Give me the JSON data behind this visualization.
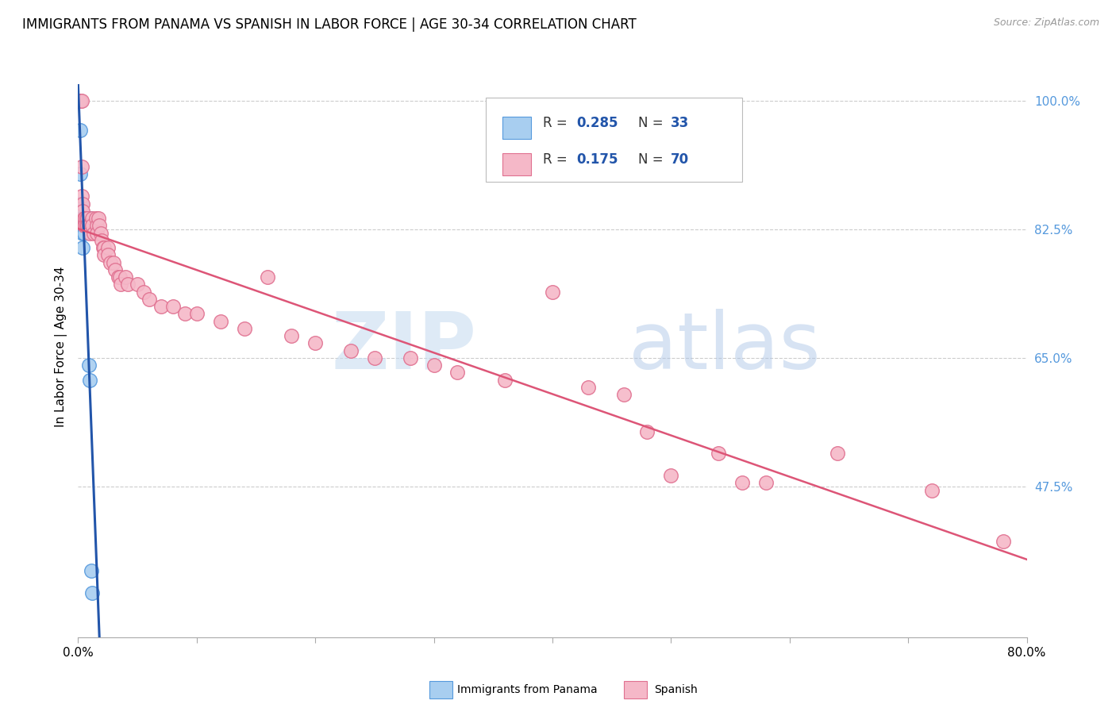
{
  "title": "IMMIGRANTS FROM PANAMA VS SPANISH IN LABOR FORCE | AGE 30-34 CORRELATION CHART",
  "source": "Source: ZipAtlas.com",
  "ylabel": "In Labor Force | Age 30-34",
  "watermark_zip": "ZIP",
  "watermark_atlas": "atlas",
  "legend_blue_r": "R = 0.285",
  "legend_blue_n": "N = 33",
  "legend_pink_r": "R =  0.175",
  "legend_pink_n": "N = 70",
  "right_yticks": [
    1.0,
    0.825,
    0.65,
    0.475
  ],
  "right_ytick_labels": [
    "100.0%",
    "82.5%",
    "65.0%",
    "47.5%"
  ],
  "xmin": 0.0,
  "xmax": 0.8,
  "ymin": 0.27,
  "ymax": 1.06,
  "blue_scatter_x": [
    0.001,
    0.001,
    0.001,
    0.002,
    0.002,
    0.002,
    0.002,
    0.002,
    0.002,
    0.003,
    0.003,
    0.003,
    0.003,
    0.003,
    0.003,
    0.003,
    0.004,
    0.004,
    0.004,
    0.004,
    0.004,
    0.005,
    0.005,
    0.005,
    0.006,
    0.007,
    0.007,
    0.008,
    0.009,
    0.01,
    0.01,
    0.011,
    0.012
  ],
  "blue_scatter_y": [
    1.0,
    1.0,
    1.0,
    1.0,
    1.0,
    1.0,
    0.96,
    0.9,
    0.86,
    0.86,
    0.85,
    0.84,
    0.84,
    0.84,
    0.84,
    0.83,
    0.84,
    0.84,
    0.83,
    0.82,
    0.8,
    0.84,
    0.83,
    0.82,
    0.84,
    0.84,
    0.83,
    0.83,
    0.64,
    0.62,
    0.84,
    0.36,
    0.33
  ],
  "pink_scatter_x": [
    0.001,
    0.002,
    0.003,
    0.003,
    0.003,
    0.004,
    0.004,
    0.005,
    0.005,
    0.006,
    0.006,
    0.007,
    0.007,
    0.008,
    0.008,
    0.009,
    0.01,
    0.01,
    0.012,
    0.012,
    0.013,
    0.015,
    0.016,
    0.016,
    0.017,
    0.018,
    0.019,
    0.02,
    0.021,
    0.022,
    0.022,
    0.025,
    0.025,
    0.027,
    0.03,
    0.031,
    0.034,
    0.035,
    0.036,
    0.04,
    0.042,
    0.05,
    0.055,
    0.06,
    0.07,
    0.08,
    0.09,
    0.1,
    0.12,
    0.14,
    0.16,
    0.18,
    0.2,
    0.23,
    0.25,
    0.28,
    0.3,
    0.32,
    0.36,
    0.4,
    0.43,
    0.46,
    0.48,
    0.5,
    0.54,
    0.56,
    0.58,
    0.64,
    0.72,
    0.78
  ],
  "pink_scatter_y": [
    1.0,
    1.0,
    1.0,
    0.91,
    0.87,
    0.86,
    0.85,
    0.84,
    0.83,
    0.84,
    0.83,
    0.84,
    0.83,
    0.84,
    0.83,
    0.83,
    0.83,
    0.82,
    0.84,
    0.83,
    0.82,
    0.84,
    0.83,
    0.82,
    0.84,
    0.83,
    0.82,
    0.81,
    0.8,
    0.8,
    0.79,
    0.8,
    0.79,
    0.78,
    0.78,
    0.77,
    0.76,
    0.76,
    0.75,
    0.76,
    0.75,
    0.75,
    0.74,
    0.73,
    0.72,
    0.72,
    0.71,
    0.71,
    0.7,
    0.69,
    0.76,
    0.68,
    0.67,
    0.66,
    0.65,
    0.65,
    0.64,
    0.63,
    0.62,
    0.74,
    0.61,
    0.6,
    0.55,
    0.49,
    0.52,
    0.48,
    0.48,
    0.52,
    0.47,
    0.4
  ],
  "blue_color": "#A8CEF0",
  "pink_color": "#F5B8C8",
  "blue_edge_color": "#5599DD",
  "pink_edge_color": "#E07090",
  "blue_line_color": "#2255AA",
  "pink_line_color": "#DD5577",
  "grid_color": "#CCCCCC",
  "right_axis_color": "#5599DD",
  "background_color": "#FFFFFF",
  "legend_r_color": "#2255AA",
  "legend_text_color": "#333333"
}
